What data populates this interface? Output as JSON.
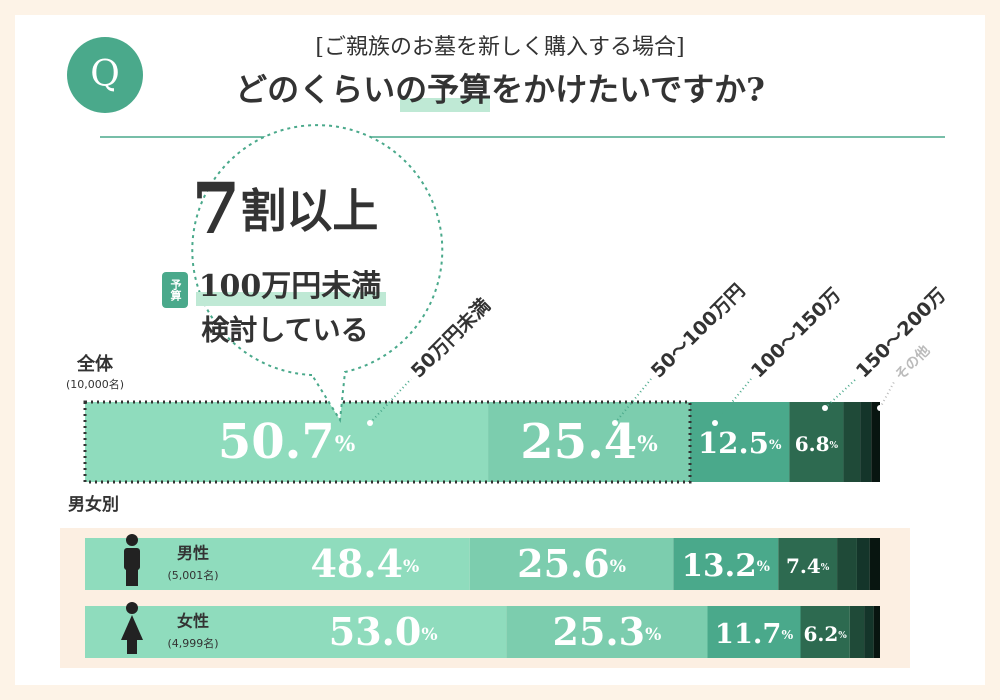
{
  "header": {
    "q": "Q",
    "subtitle": "[ご親族のお墓を新しく購入する場合]",
    "title": "どのくらいの予算をかけたいですか?"
  },
  "callout": {
    "headline": "7割以上",
    "badge": "予算",
    "highlight": "100万円未満",
    "text": "検討している"
  },
  "chart_data": {
    "type": "stacked_bar",
    "group_label": "男女別",
    "categories": [
      "全体",
      "男性",
      "女性"
    ],
    "category_notes": [
      "(10,000名)",
      "(5,001名)",
      "(4,999名)"
    ],
    "xlim": [
      0,
      100
    ],
    "series": [
      {
        "name": "50万円未満",
        "color": "#8fdcbd",
        "values": [
          50.7,
          48.4,
          53.0
        ],
        "value_labels": [
          "50.7%",
          "48.4%",
          "53.0%"
        ]
      },
      {
        "name": "50〜100万円",
        "color": "#7ccdae",
        "values": [
          25.4,
          25.6,
          25.3
        ],
        "value_labels": [
          "25.4%",
          "25.6%",
          "25.3%"
        ]
      },
      {
        "name": "100〜150万",
        "color": "#4aa98b",
        "values": [
          12.5,
          13.2,
          11.7
        ],
        "value_labels": [
          "12.5%",
          "13.2%",
          "11.7%"
        ]
      },
      {
        "name": "150〜200万",
        "color": "#2d6a50",
        "values": [
          6.8,
          7.4,
          6.2
        ],
        "value_labels": [
          "6.8%",
          "7.4%",
          "6.2%"
        ]
      },
      {
        "color": "#1f4a38",
        "values": [
          2.1,
          2.5,
          1.8
        ]
      },
      {
        "color": "#14352a",
        "values": [
          1.4,
          1.6,
          1.2
        ]
      },
      {
        "name": "その他",
        "color": "#081510",
        "values": [
          1.1,
          1.3,
          0.8
        ]
      }
    ]
  }
}
